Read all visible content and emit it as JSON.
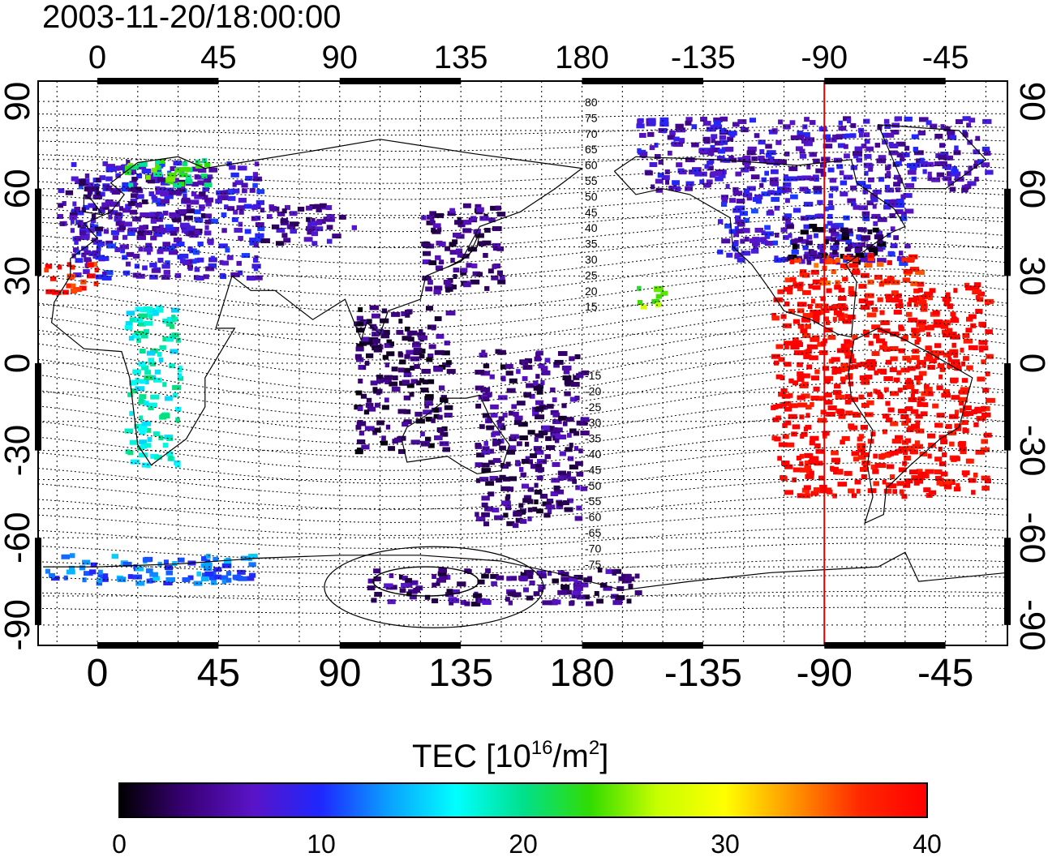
{
  "title": "2003-11-20/18:00:00",
  "map": {
    "projection": "equirectangular",
    "lon_range": [
      -22,
      338
    ],
    "lat_range": [
      -97,
      97
    ],
    "lon_ticks": [
      0,
      45,
      90,
      135,
      180,
      225,
      270,
      315
    ],
    "lon_tick_labels": [
      "0",
      "45",
      "90",
      "135",
      "180",
      "-135",
      "-90",
      "-45"
    ],
    "lat_ticks": [
      90,
      60,
      30,
      0,
      -30,
      -60,
      -90
    ],
    "lat_tick_labels": [
      "90",
      "60",
      "30",
      "0",
      "-30",
      "-60",
      "-90"
    ],
    "grid": true,
    "reference_meridian": {
      "lon": 270,
      "color": "#e00000"
    }
  },
  "contour_labels_north": [
    "80",
    "75",
    "70",
    "65",
    "60",
    "55",
    "50",
    "45",
    "40",
    "35",
    "30",
    "25",
    "20",
    "15"
  ],
  "contour_labels_south": [
    "-15",
    "-20",
    "-25",
    "-30",
    "-35",
    "-40",
    "-45",
    "-50",
    "-55",
    "-60",
    "-65",
    "-70",
    "-75"
  ],
  "colorbar": {
    "label_main": "TEC  [10",
    "label_exp": "16",
    "label_unit": "/m",
    "label_exp2": "2",
    "label_close": "]",
    "min": 0,
    "max": 40,
    "ticks": [
      "0",
      "10",
      "20",
      "30",
      "40"
    ],
    "colormap": [
      "#000000",
      "#3a0078",
      "#5a14c8",
      "#1e28ff",
      "#0aa0ff",
      "#00ffff",
      "#00e08c",
      "#32dc00",
      "#c8ff00",
      "#ffff00",
      "#ff9600",
      "#ff2800",
      "#ff0000"
    ]
  },
  "chart_data": {
    "type": "heatmap",
    "title": "2003-11-20/18:00:00",
    "xlabel": "",
    "ylabel": "",
    "quantity": "TEC [10^16/m^2]",
    "xlim": [
      -22,
      338
    ],
    "ylim": [
      -97,
      97
    ],
    "regions": [
      {
        "lon": [
          -10,
          60
        ],
        "lat": [
          30,
          70
        ],
        "tec": 8
      },
      {
        "lon": [
          -15,
          40
        ],
        "lat": [
          45,
          65
        ],
        "tec": 5
      },
      {
        "lon": [
          10,
          40
        ],
        "lat": [
          62,
          72
        ],
        "tec": 22
      },
      {
        "lon": [
          -20,
          0
        ],
        "lat": [
          25,
          35
        ],
        "tec": 38
      },
      {
        "lon": [
          60,
          95
        ],
        "lat": [
          42,
          55
        ],
        "tec": 5
      },
      {
        "lon": [
          120,
          150
        ],
        "lat": [
          25,
          55
        ],
        "tec": 4
      },
      {
        "lon": [
          95,
          130
        ],
        "lat": [
          -30,
          20
        ],
        "tec": 3
      },
      {
        "lon": [
          140,
          180
        ],
        "lat": [
          -55,
          5
        ],
        "tec": 4
      },
      {
        "lon": [
          230,
          300
        ],
        "lat": [
          35,
          60
        ],
        "tec": 8
      },
      {
        "lon": [
          255,
          290
        ],
        "lat": [
          35,
          48
        ],
        "tec": 2
      },
      {
        "lon": [
          255,
          305
        ],
        "lat": [
          28,
          38
        ],
        "tec": 37
      },
      {
        "lon": [
          250,
          330
        ],
        "lat": [
          -45,
          28
        ],
        "tec": 40
      },
      {
        "lon": [
          200,
          330
        ],
        "lat": [
          60,
          85
        ],
        "tec": 7
      },
      {
        "lon": [
          200,
          210
        ],
        "lat": [
          20,
          28
        ],
        "tec": 25
      },
      {
        "lon": [
          -20,
          60
        ],
        "lat": [
          -75,
          -65
        ],
        "tec": 12
      },
      {
        "lon": [
          100,
          200
        ],
        "lat": [
          -82,
          -70
        ],
        "tec": 4
      },
      {
        "lon": [
          10,
          30
        ],
        "lat": [
          -35,
          20
        ],
        "tec": 18
      }
    ]
  }
}
